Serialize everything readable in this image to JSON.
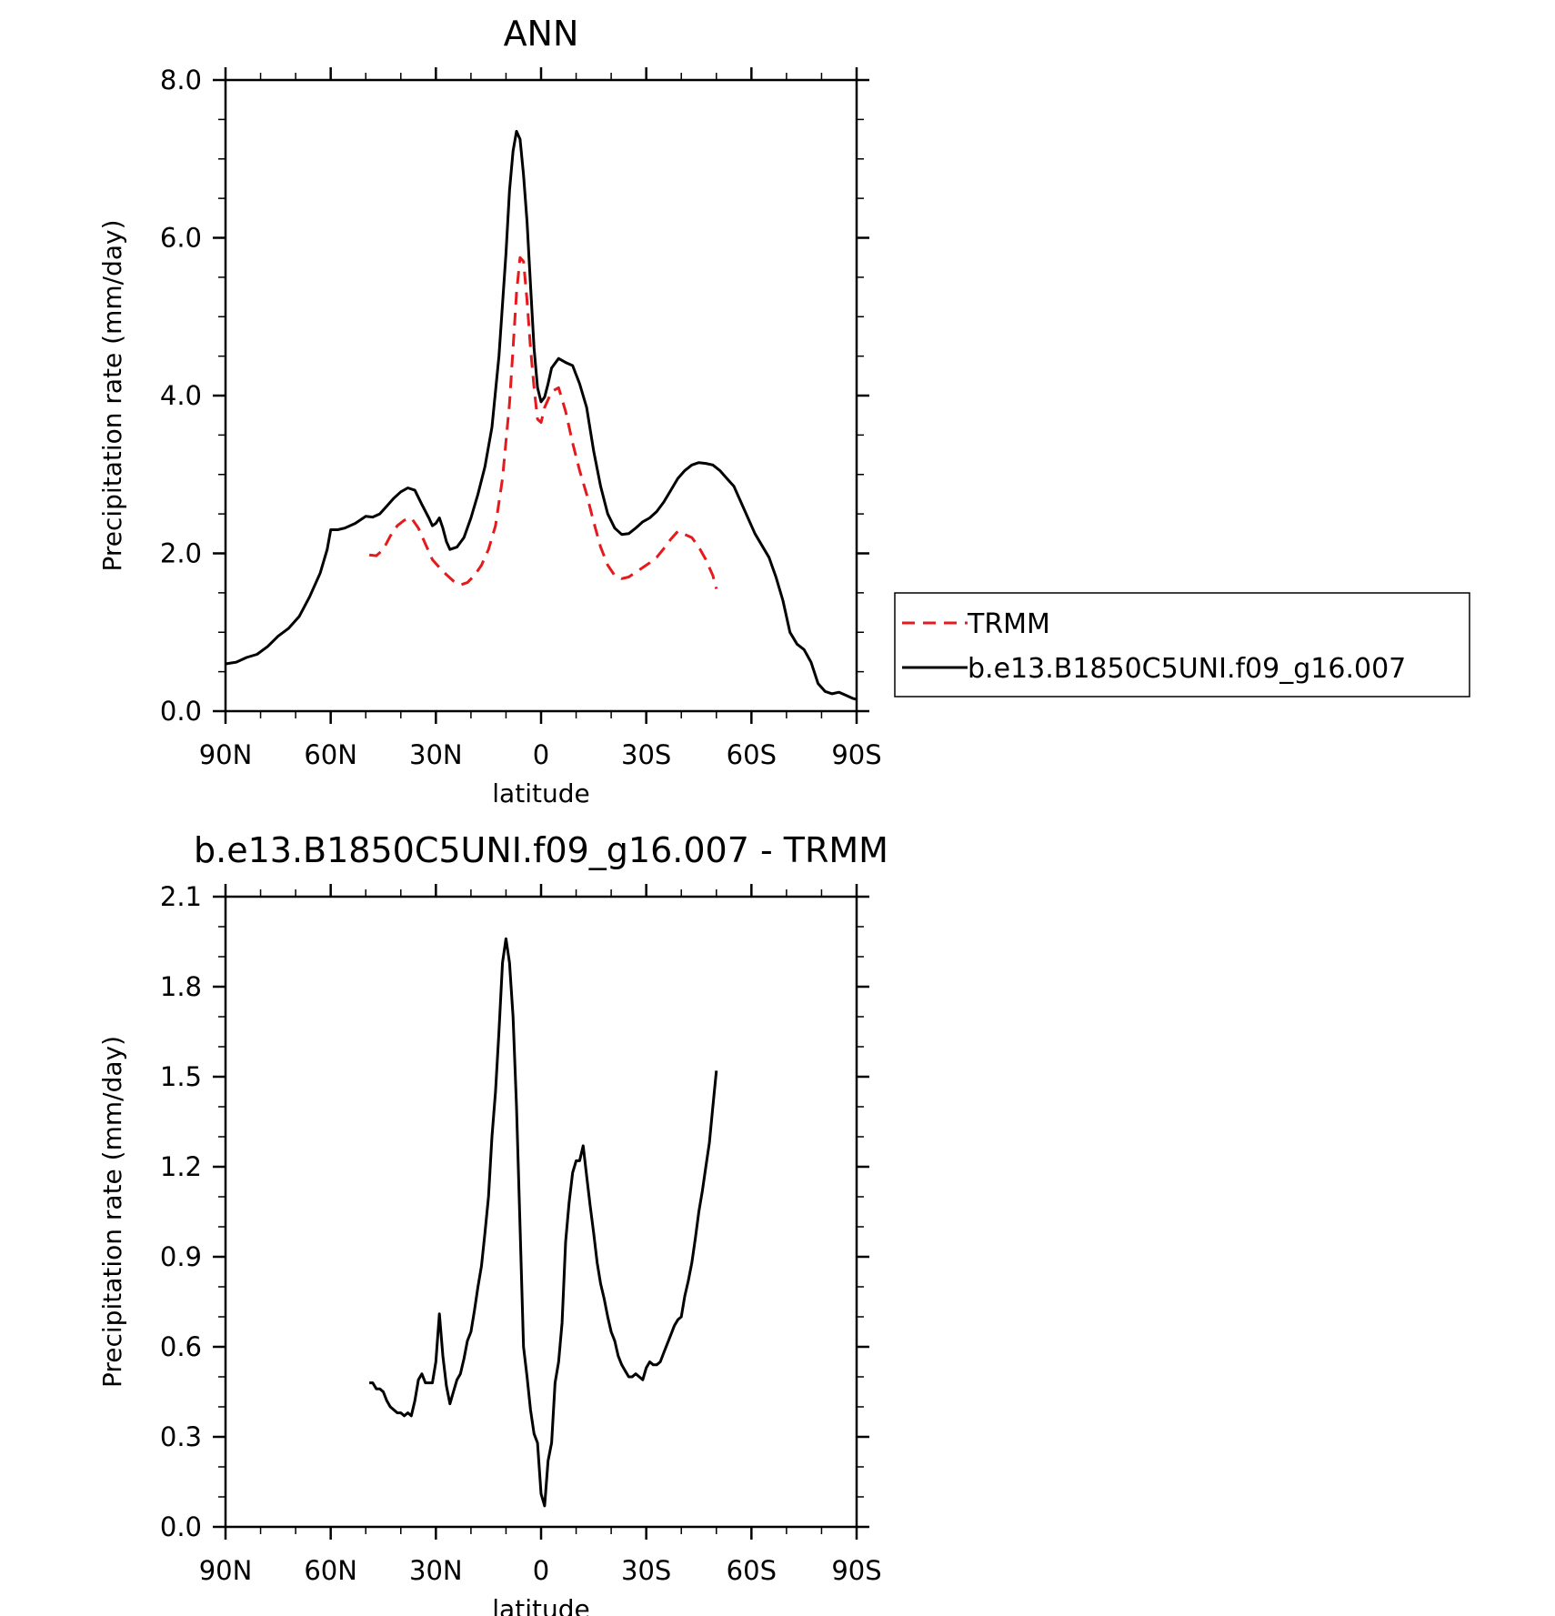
{
  "chart_data": [
    {
      "type": "line",
      "title": "ANN",
      "xlabel": "latitude",
      "ylabel": "Precipitation rate (mm/day)",
      "xlim": [
        90,
        -90
      ],
      "ylim": [
        0,
        8
      ],
      "x_ticks": [
        90,
        60,
        30,
        0,
        -30,
        -60,
        -90
      ],
      "x_tick_labels": [
        "90N",
        "60N",
        "30N",
        "0",
        "30S",
        "60S",
        "90S"
      ],
      "y_ticks": [
        0,
        2,
        4,
        6,
        8
      ],
      "y_tick_labels": [
        "0.0",
        "2.0",
        "4.0",
        "6.0",
        "8.0"
      ],
      "grid": false,
      "legend_position": "right",
      "series": [
        {
          "name": "TRMM",
          "color": "#e41a1c",
          "style": "dashed",
          "points": [
            [
              49,
              1.98
            ],
            [
              47,
              1.97
            ],
            [
              45,
              2.05
            ],
            [
              43,
              2.22
            ],
            [
              41,
              2.35
            ],
            [
              39,
              2.42
            ],
            [
              37,
              2.45
            ],
            [
              35,
              2.32
            ],
            [
              33,
              2.12
            ],
            [
              31,
              1.92
            ],
            [
              29,
              1.82
            ],
            [
              27,
              1.73
            ],
            [
              25,
              1.65
            ],
            [
              23,
              1.6
            ],
            [
              21,
              1.63
            ],
            [
              19,
              1.72
            ],
            [
              17,
              1.85
            ],
            [
              15,
              2.05
            ],
            [
              13,
              2.35
            ],
            [
              11,
              2.95
            ],
            [
              9,
              3.9
            ],
            [
              8,
              4.6
            ],
            [
              7,
              5.3
            ],
            [
              6,
              5.75
            ],
            [
              5,
              5.7
            ],
            [
              4,
              5.2
            ],
            [
              3,
              4.6
            ],
            [
              2,
              4.1
            ],
            [
              1,
              3.7
            ],
            [
              0,
              3.66
            ],
            [
              -1,
              3.85
            ],
            [
              -3,
              4.05
            ],
            [
              -5,
              4.1
            ],
            [
              -7,
              3.8
            ],
            [
              -9,
              3.4
            ],
            [
              -11,
              3.05
            ],
            [
              -13,
              2.75
            ],
            [
              -15,
              2.4
            ],
            [
              -17,
              2.08
            ],
            [
              -19,
              1.85
            ],
            [
              -21,
              1.72
            ],
            [
              -23,
              1.68
            ],
            [
              -25,
              1.7
            ],
            [
              -27,
              1.76
            ],
            [
              -29,
              1.82
            ],
            [
              -31,
              1.88
            ],
            [
              -33,
              1.95
            ],
            [
              -35,
              2.06
            ],
            [
              -37,
              2.18
            ],
            [
              -39,
              2.28
            ],
            [
              -41,
              2.24
            ],
            [
              -43,
              2.2
            ],
            [
              -45,
              2.08
            ],
            [
              -47,
              1.92
            ],
            [
              -49,
              1.72
            ],
            [
              -50,
              1.55
            ]
          ]
        },
        {
          "name": "b.e13.B1850C5UNI.f09_g16.007",
          "color": "#000000",
          "style": "solid",
          "points": [
            [
              90,
              0.6
            ],
            [
              87,
              0.62
            ],
            [
              84,
              0.68
            ],
            [
              81,
              0.72
            ],
            [
              78,
              0.82
            ],
            [
              75,
              0.95
            ],
            [
              72,
              1.05
            ],
            [
              69,
              1.2
            ],
            [
              66,
              1.45
            ],
            [
              63,
              1.75
            ],
            [
              61,
              2.05
            ],
            [
              60,
              2.3
            ],
            [
              58,
              2.3
            ],
            [
              56,
              2.32
            ],
            [
              53,
              2.38
            ],
            [
              50,
              2.47
            ],
            [
              48,
              2.46
            ],
            [
              46,
              2.5
            ],
            [
              44,
              2.6
            ],
            [
              42,
              2.7
            ],
            [
              40,
              2.78
            ],
            [
              38,
              2.83
            ],
            [
              36,
              2.8
            ],
            [
              34,
              2.62
            ],
            [
              32,
              2.45
            ],
            [
              31,
              2.35
            ],
            [
              30,
              2.38
            ],
            [
              29,
              2.45
            ],
            [
              28,
              2.32
            ],
            [
              27,
              2.15
            ],
            [
              26,
              2.05
            ],
            [
              24,
              2.08
            ],
            [
              22,
              2.2
            ],
            [
              20,
              2.45
            ],
            [
              18,
              2.75
            ],
            [
              16,
              3.1
            ],
            [
              14,
              3.6
            ],
            [
              12,
              4.5
            ],
            [
              10,
              5.8
            ],
            [
              9,
              6.6
            ],
            [
              8,
              7.1
            ],
            [
              7,
              7.35
            ],
            [
              6,
              7.25
            ],
            [
              5,
              6.8
            ],
            [
              4,
              6.2
            ],
            [
              3,
              5.4
            ],
            [
              2,
              4.6
            ],
            [
              1,
              4.1
            ],
            [
              0,
              3.92
            ],
            [
              -1,
              3.98
            ],
            [
              -2,
              4.15
            ],
            [
              -3,
              4.35
            ],
            [
              -5,
              4.47
            ],
            [
              -7,
              4.42
            ],
            [
              -9,
              4.38
            ],
            [
              -11,
              4.15
            ],
            [
              -13,
              3.85
            ],
            [
              -15,
              3.3
            ],
            [
              -17,
              2.85
            ],
            [
              -19,
              2.5
            ],
            [
              -21,
              2.32
            ],
            [
              -23,
              2.24
            ],
            [
              -25,
              2.25
            ],
            [
              -27,
              2.32
            ],
            [
              -29,
              2.4
            ],
            [
              -31,
              2.45
            ],
            [
              -33,
              2.53
            ],
            [
              -35,
              2.65
            ],
            [
              -37,
              2.8
            ],
            [
              -39,
              2.95
            ],
            [
              -41,
              3.05
            ],
            [
              -43,
              3.12
            ],
            [
              -45,
              3.15
            ],
            [
              -47,
              3.14
            ],
            [
              -49,
              3.12
            ],
            [
              -51,
              3.05
            ],
            [
              -53,
              2.95
            ],
            [
              -55,
              2.85
            ],
            [
              -57,
              2.65
            ],
            [
              -59,
              2.45
            ],
            [
              -61,
              2.25
            ],
            [
              -63,
              2.1
            ],
            [
              -65,
              1.95
            ],
            [
              -67,
              1.7
            ],
            [
              -69,
              1.4
            ],
            [
              -71,
              1.0
            ],
            [
              -73,
              0.85
            ],
            [
              -75,
              0.78
            ],
            [
              -77,
              0.62
            ],
            [
              -79,
              0.35
            ],
            [
              -81,
              0.25
            ],
            [
              -83,
              0.22
            ],
            [
              -85,
              0.24
            ],
            [
              -87,
              0.2
            ],
            [
              -89,
              0.16
            ],
            [
              -90,
              0.15
            ]
          ]
        }
      ]
    },
    {
      "type": "line",
      "title": "b.e13.B1850C5UNI.f09_g16.007 - TRMM",
      "xlabel": "latitude",
      "ylabel": "Precipitation rate (mm/day)",
      "xlim": [
        90,
        -90
      ],
      "ylim": [
        0,
        2.1
      ],
      "x_ticks": [
        90,
        60,
        30,
        0,
        -30,
        -60,
        -90
      ],
      "x_tick_labels": [
        "90N",
        "60N",
        "30N",
        "0",
        "30S",
        "60S",
        "90S"
      ],
      "y_ticks": [
        0,
        0.3,
        0.6,
        0.9,
        1.2,
        1.5,
        1.8,
        2.1
      ],
      "y_tick_labels": [
        "0.0",
        "0.3",
        "0.6",
        "0.9",
        "1.2",
        "1.5",
        "1.8",
        "2.1"
      ],
      "grid": false,
      "series": [
        {
          "color": "#000000",
          "style": "solid",
          "points": [
            [
              49,
              0.48
            ],
            [
              48,
              0.48
            ],
            [
              47,
              0.46
            ],
            [
              46,
              0.46
            ],
            [
              45,
              0.45
            ],
            [
              44,
              0.42
            ],
            [
              43,
              0.4
            ],
            [
              42,
              0.39
            ],
            [
              41,
              0.38
            ],
            [
              40,
              0.38
            ],
            [
              39,
              0.37
            ],
            [
              38,
              0.38
            ],
            [
              37,
              0.37
            ],
            [
              36,
              0.42
            ],
            [
              35,
              0.49
            ],
            [
              34,
              0.51
            ],
            [
              33,
              0.48
            ],
            [
              32,
              0.48
            ],
            [
              31,
              0.48
            ],
            [
              30,
              0.55
            ],
            [
              29,
              0.71
            ],
            [
              28,
              0.57
            ],
            [
              27,
              0.47
            ],
            [
              26,
              0.41
            ],
            [
              25,
              0.45
            ],
            [
              24,
              0.49
            ],
            [
              23,
              0.51
            ],
            [
              22,
              0.56
            ],
            [
              21,
              0.62
            ],
            [
              20,
              0.65
            ],
            [
              19,
              0.72
            ],
            [
              18,
              0.8
            ],
            [
              17,
              0.87
            ],
            [
              16,
              0.98
            ],
            [
              15,
              1.1
            ],
            [
              14,
              1.3
            ],
            [
              13,
              1.45
            ],
            [
              12,
              1.65
            ],
            [
              11,
              1.88
            ],
            [
              10,
              1.96
            ],
            [
              9,
              1.88
            ],
            [
              8,
              1.7
            ],
            [
              7,
              1.4
            ],
            [
              6,
              1.0
            ],
            [
              5,
              0.6
            ],
            [
              4,
              0.5
            ],
            [
              3,
              0.39
            ],
            [
              2,
              0.31
            ],
            [
              1,
              0.28
            ],
            [
              0,
              0.11
            ],
            [
              -1,
              0.07
            ],
            [
              -2,
              0.22
            ],
            [
              -3,
              0.28
            ],
            [
              -4,
              0.48
            ],
            [
              -5,
              0.55
            ],
            [
              -6,
              0.68
            ],
            [
              -7,
              0.95
            ],
            [
              -8,
              1.08
            ],
            [
              -9,
              1.18
            ],
            [
              -10,
              1.22
            ],
            [
              -11,
              1.22
            ],
            [
              -12,
              1.27
            ],
            [
              -13,
              1.17
            ],
            [
              -14,
              1.07
            ],
            [
              -15,
              0.98
            ],
            [
              -16,
              0.88
            ],
            [
              -17,
              0.81
            ],
            [
              -18,
              0.76
            ],
            [
              -19,
              0.7
            ],
            [
              -20,
              0.65
            ],
            [
              -21,
              0.62
            ],
            [
              -22,
              0.57
            ],
            [
              -23,
              0.54
            ],
            [
              -24,
              0.52
            ],
            [
              -25,
              0.5
            ],
            [
              -26,
              0.5
            ],
            [
              -27,
              0.51
            ],
            [
              -28,
              0.5
            ],
            [
              -29,
              0.49
            ],
            [
              -30,
              0.53
            ],
            [
              -31,
              0.55
            ],
            [
              -32,
              0.54
            ],
            [
              -33,
              0.54
            ],
            [
              -34,
              0.55
            ],
            [
              -35,
              0.58
            ],
            [
              -36,
              0.61
            ],
            [
              -37,
              0.64
            ],
            [
              -38,
              0.67
            ],
            [
              -39,
              0.69
            ],
            [
              -40,
              0.7
            ],
            [
              -41,
              0.77
            ],
            [
              -42,
              0.82
            ],
            [
              -43,
              0.88
            ],
            [
              -44,
              0.96
            ],
            [
              -45,
              1.05
            ],
            [
              -46,
              1.12
            ],
            [
              -47,
              1.2
            ],
            [
              -48,
              1.28
            ],
            [
              -49,
              1.4
            ],
            [
              -50,
              1.52
            ]
          ]
        }
      ]
    }
  ]
}
